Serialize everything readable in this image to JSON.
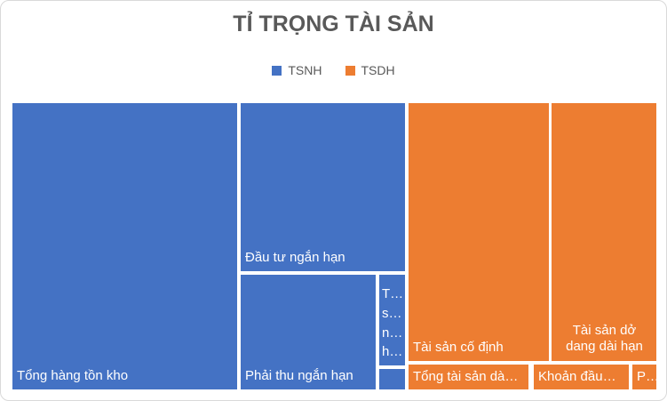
{
  "chart": {
    "title": "TỈ TRỌNG TÀI SẢN",
    "legend": [
      {
        "label": "TSNH",
        "color": "#4472C4"
      },
      {
        "label": "TSDH",
        "color": "#ED7D31"
      }
    ]
  },
  "colors": {
    "tsnh_blue": "#4472C4",
    "tsdh_orange": "#ED7D31",
    "title_text": "#595959",
    "legend_text": "#595959",
    "block_label_text": "#FFFFFF",
    "background": "#FFFFFF",
    "frame_border": "#D9D9D9"
  },
  "chart_data": {
    "type": "treemap",
    "title": "TỈ TRỌNG TÀI SẢN",
    "legend_position": "top",
    "groups": [
      "TSNH",
      "TSDH"
    ],
    "items": [
      {
        "label": "Tổng hàng tồn kho",
        "group": "TSNH",
        "value_pct_est": 35.9
      },
      {
        "label": "Đầu tư ngắn hạn",
        "group": "TSNH",
        "value_pct_est": 15.4
      },
      {
        "label": "Phải thu ngắn hạn",
        "group": "TSNH",
        "value_pct_est": 8.6
      },
      {
        "label": "T…\ns…\nn…\nh…",
        "group": "TSNH",
        "value_pct_est": 1.3
      },
      {
        "label": "",
        "group": "TSNH",
        "value_pct_est": 0.3
      },
      {
        "label": "Tài sản cố định",
        "group": "TSDH",
        "value_pct_est": 20.2
      },
      {
        "label": "Tài sản dở\ndang dài hạn",
        "group": "TSDH",
        "value_pct_est": 15.1
      },
      {
        "label": "Tổng tài sản dà…",
        "group": "TSDH",
        "value_pct_est": 1.7
      },
      {
        "label": "Khoản đầu…",
        "group": "TSDH",
        "value_pct_est": 1.3
      },
      {
        "label": "P…",
        "group": "TSDH",
        "value_pct_est": 0.3
      }
    ]
  }
}
